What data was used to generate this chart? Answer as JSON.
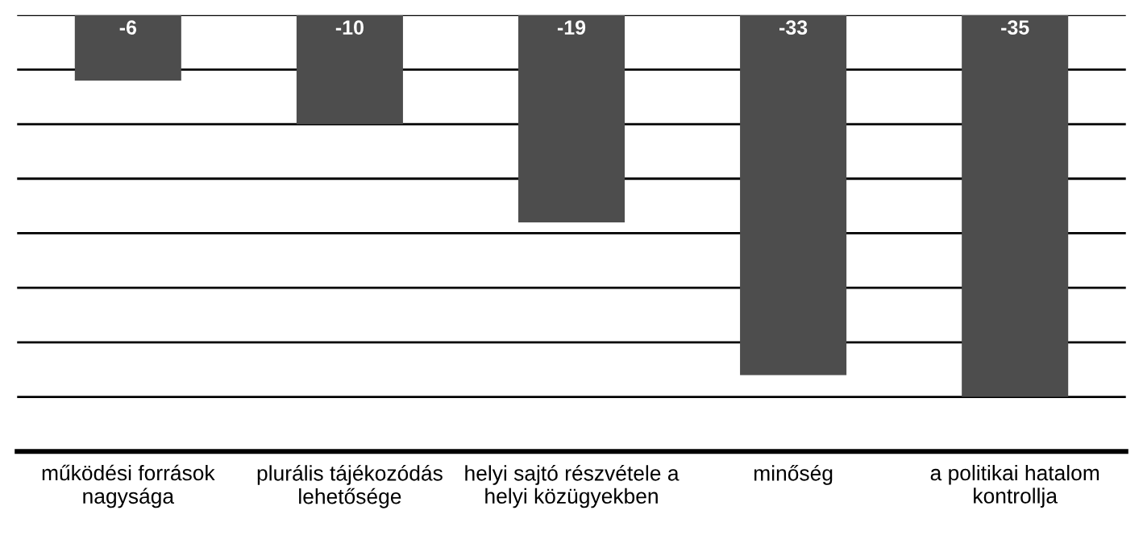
{
  "chart_data": {
    "type": "bar",
    "categories": [
      "működési források\nnagysága",
      "plurális tájékozódás\nlehetősége",
      "helyi sajtó részvétele a\nhelyi közügyekben",
      "minőség",
      "a politikai hatalom\nkontrollja"
    ],
    "values": [
      -6,
      -10,
      -19,
      -33,
      -35
    ],
    "color": "#4d4d4d",
    "data_labels": true,
    "ylim": [
      -40,
      0
    ],
    "yticks": [
      {
        "value": 0,
        "label": null
      },
      {
        "value": -5,
        "label": null
      },
      {
        "value": -10,
        "label": null
      },
      {
        "value": -15,
        "label": null
      },
      {
        "value": -20,
        "label": null
      },
      {
        "value": -25,
        "label": null
      },
      {
        "value": -30,
        "label": null
      },
      {
        "value": -35,
        "label": null
      }
    ],
    "grid": "y",
    "tick_labels": "x"
  }
}
